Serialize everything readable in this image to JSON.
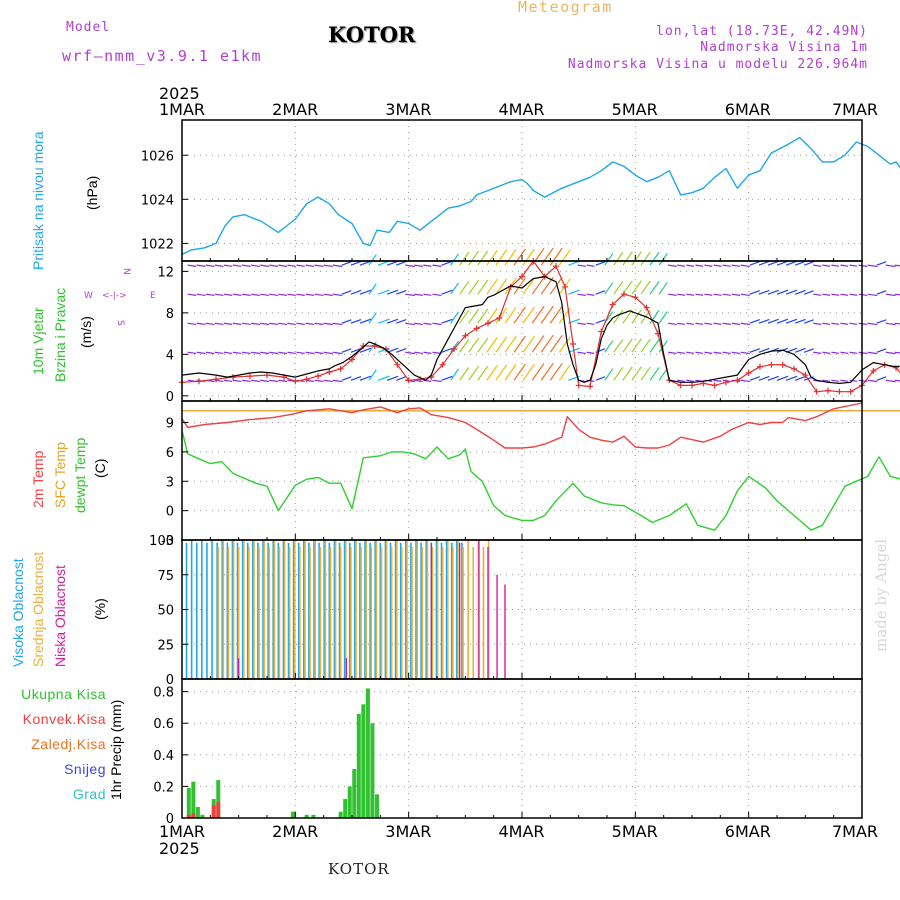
{
  "header": {
    "model_label": "Model",
    "model_name": "wrf—nmm_v3.9.1  e1km",
    "station": "KOTOR",
    "title": "Meteogram",
    "lonlat": "lon,lat (18.73E, 42.49N)",
    "elevation": "Nadmorska Visina 1m",
    "model_elevation": "Nadmorska Visina u modelu 226.964m"
  },
  "footer": {
    "station": "KOTOR",
    "credit": "made by Angel"
  },
  "axis": {
    "year": "2025",
    "dates": [
      "1MAR",
      "2MAR",
      "3MAR",
      "4MAR",
      "5MAR",
      "6MAR",
      "7MAR"
    ]
  },
  "colors": {
    "pressure": "#1ea8e8",
    "temp2m": "#f04040",
    "sfc": "#e8a020",
    "dewpt": "#30d030",
    "wind_speed": "#000000",
    "gust": "#e03030",
    "high_cloud": "#1ea8e8",
    "mid_cloud": "#e8b040",
    "low_cloud": "#d020a0",
    "precip": "#30c030",
    "convective": "#f04040"
  },
  "panels": {
    "pressure": {
      "label": "Pritisak na nivou mora",
      "unit": "(hPa)",
      "ticks": [
        "1022",
        "1024",
        "1026"
      ]
    },
    "wind": {
      "label1": "10m Vjetar",
      "label2": "Brzina i Pravac",
      "unit": "(m/s)",
      "ticks": [
        "0",
        "4",
        "8",
        "12"
      ],
      "compass": {
        "n": "N",
        "s": "S",
        "w": "W",
        "e": "E"
      }
    },
    "temp": {
      "label1": "2m Temp",
      "label2": "SFC Temp",
      "label3": "dewpt Temp",
      "unit": "(C)",
      "ticks": [
        "-3",
        "0",
        "3",
        "6",
        "9"
      ]
    },
    "cloud": {
      "label1": "Visoka Oblacnost",
      "label2": "Srednja Oblacnost",
      "label3": "Niska Oblacnost",
      "unit": "(%)",
      "ticks": [
        "0",
        "25",
        "50",
        "75",
        "100"
      ]
    },
    "precip": {
      "unit": "1hr Precip (mm)",
      "ticks": [
        "0",
        "0.2",
        "0.4",
        "0.6",
        "0.8"
      ],
      "legend": [
        "Ukupna Kisa",
        "Konvek.Kisa",
        "Zaledj.Kisa",
        "Snijeg",
        "Grad"
      ]
    }
  },
  "chart_data": [
    {
      "type": "line",
      "title": "Pritisak na nivou mora",
      "ylabel": "(hPa)",
      "x_unit": "days since 1MAR 00z",
      "ylim": [
        1021.2,
        1027.6
      ],
      "series": [
        {
          "name": "Pritisak na nivou mora",
          "x": [
            0,
            0.08,
            0.2,
            0.3,
            0.38,
            0.45,
            0.55,
            0.6,
            0.7,
            0.85,
            0.95,
            1.0,
            1.1,
            1.2,
            1.3,
            1.38,
            1.5,
            1.6,
            1.66,
            1.72,
            1.83,
            1.9,
            2.0,
            2.1,
            2.2,
            2.25,
            2.35,
            2.45,
            2.55,
            2.6,
            2.7,
            2.8,
            2.9,
            3.0,
            3.05,
            3.1,
            3.2,
            3.35,
            3.5,
            3.6,
            3.7,
            3.8,
            3.9,
            4.0,
            4.1,
            4.2,
            4.3,
            4.4,
            4.5,
            4.6,
            4.7,
            4.8,
            4.9,
            5.0,
            5.1,
            5.2,
            5.35,
            5.45,
            5.55,
            5.65,
            5.75,
            5.85,
            5.95,
            6.05,
            6.15,
            6.25,
            6.3,
            6.4,
            6.5,
            6.6,
            6.7,
            6.8,
            6.85,
            6.9,
            7.0
          ],
          "y": [
            1021.5,
            1021.7,
            1021.8,
            1022.0,
            1022.8,
            1023.2,
            1023.3,
            1023.2,
            1023.0,
            1022.5,
            1022.9,
            1023.1,
            1023.8,
            1024.1,
            1023.8,
            1023.3,
            1022.9,
            1022.0,
            1021.9,
            1022.6,
            1022.5,
            1023.0,
            1022.9,
            1022.6,
            1023.0,
            1023.2,
            1023.6,
            1023.7,
            1023.9,
            1024.2,
            1024.4,
            1024.6,
            1024.8,
            1024.9,
            1024.7,
            1024.4,
            1024.1,
            1024.5,
            1024.8,
            1025.0,
            1025.3,
            1025.7,
            1025.5,
            1025.1,
            1024.8,
            1025.0,
            1025.3,
            1024.2,
            1024.3,
            1024.5,
            1025.0,
            1025.4,
            1024.5,
            1025.1,
            1025.3,
            1026.1,
            1026.5,
            1026.8,
            1026.3,
            1025.7,
            1025.7,
            1026.0,
            1026.6,
            1026.4,
            1026.0,
            1025.6,
            1025.7,
            1025.0,
            1024.0,
            1023.6,
            1023.5,
            1023.4,
            1023.5,
            1023.4,
            1023.2
          ]
        }
      ]
    },
    {
      "type": "line",
      "title": "10m Vjetar Brzina i Pravac",
      "ylabel": "(m/s)",
      "x_unit": "days since 1MAR 00z",
      "ylim": [
        -0.5,
        13
      ],
      "series": [
        {
          "name": "speed",
          "x": [
            0,
            0.15,
            0.3,
            0.4,
            0.5,
            0.6,
            0.7,
            0.8,
            0.9,
            1.0,
            1.1,
            1.2,
            1.3,
            1.35,
            1.42,
            1.5,
            1.58,
            1.65,
            1.7,
            1.78,
            1.85,
            1.95,
            2.05,
            2.15,
            2.2,
            2.25,
            2.35,
            2.45,
            2.5,
            2.55,
            2.6,
            2.65,
            2.7,
            2.75,
            2.8,
            2.9,
            3.0,
            3.1,
            3.2,
            3.3,
            3.35,
            3.4,
            3.45,
            3.5,
            3.55,
            3.6,
            3.65,
            3.7,
            3.75,
            3.8,
            3.85,
            3.9,
            3.95,
            4.0,
            4.1,
            4.2,
            4.25,
            4.3,
            4.4,
            4.5,
            4.6,
            4.7,
            4.8,
            4.9,
            5.0,
            5.1,
            5.2,
            5.3,
            5.4,
            5.5,
            5.55,
            5.6,
            5.65,
            5.7,
            5.8,
            5.9,
            6.0,
            6.1,
            6.2,
            6.3,
            6.4,
            6.45,
            6.5,
            6.6,
            6.7,
            6.8,
            6.85,
            6.9,
            7.0
          ],
          "y": [
            2.0,
            2.2,
            2.0,
            1.8,
            2.0,
            2.2,
            2.3,
            2.2,
            2.0,
            1.8,
            2.1,
            2.4,
            2.6,
            2.9,
            3.2,
            3.8,
            4.5,
            5.2,
            5.0,
            4.6,
            4.0,
            3.0,
            2.0,
            1.5,
            2.0,
            3.5,
            5.5,
            7.5,
            8.5,
            8.6,
            8.7,
            8.8,
            9.5,
            9.7,
            10.0,
            10.6,
            10.4,
            11.3,
            11.5,
            11.0,
            9.0,
            5.0,
            3.0,
            1.5,
            1.3,
            1.5,
            3.0,
            5.5,
            6.8,
            7.5,
            7.8,
            8.0,
            8.2,
            8.0,
            7.6,
            7.0,
            4.0,
            1.5,
            1.3,
            1.3,
            1.4,
            1.6,
            1.8,
            2.0,
            3.5,
            4.0,
            4.3,
            4.4,
            4.0,
            3.0,
            1.8,
            1.5,
            1.4,
            1.3,
            1.2,
            1.3,
            2.5,
            3.2,
            3.0,
            2.8,
            3.0,
            3.5,
            2.2,
            1.2,
            1.0,
            1.2,
            1.3,
            1.5,
            1.8
          ]
        },
        {
          "name": "gust",
          "x": [
            0,
            0.15,
            0.3,
            0.45,
            0.6,
            0.75,
            0.9,
            1.0,
            1.1,
            1.2,
            1.3,
            1.4,
            1.5,
            1.6,
            1.7,
            1.8,
            1.9,
            2.0,
            2.1,
            2.2,
            2.3,
            2.4,
            2.5,
            2.6,
            2.7,
            2.8,
            2.9,
            3.0,
            3.1,
            3.2,
            3.3,
            3.38,
            3.45,
            3.5,
            3.6,
            3.7,
            3.8,
            3.9,
            4.0,
            4.1,
            4.2,
            4.3,
            4.4,
            4.5,
            4.6,
            4.7,
            4.8,
            4.9,
            5.0,
            5.1,
            5.2,
            5.3,
            5.4,
            5.5,
            5.6,
            5.7,
            5.8,
            5.9,
            6.0,
            6.1,
            6.2,
            6.3,
            6.4,
            6.5,
            6.6,
            6.7,
            6.8,
            6.9,
            7.0
          ],
          "y": [
            1.3,
            1.4,
            1.6,
            1.8,
            1.9,
            2.0,
            1.8,
            1.4,
            1.6,
            1.9,
            2.3,
            2.6,
            3.5,
            4.8,
            4.8,
            4.5,
            3.0,
            1.5,
            1.6,
            1.8,
            3.0,
            4.5,
            5.8,
            6.5,
            7.0,
            7.5,
            10.5,
            11.5,
            13.0,
            11.5,
            12.5,
            10.5,
            5.0,
            1.0,
            0.9,
            6.2,
            8.8,
            9.8,
            9.5,
            8.5,
            6.0,
            1.5,
            1.0,
            1.0,
            1.2,
            1.0,
            1.3,
            1.5,
            2.2,
            2.8,
            3.0,
            3.0,
            2.6,
            2.0,
            0.4,
            0.5,
            0.4,
            0.4,
            1.0,
            2.4,
            3.0,
            2.7,
            1.5,
            0.8,
            0.7,
            0.6,
            0.7,
            1.4,
            1.3
          ]
        }
      ]
    },
    {
      "type": "line",
      "title": "2m Temp / SFC Temp / dewpt Temp",
      "ylabel": "(C)",
      "x_unit": "days since 1MAR 00z",
      "ylim": [
        -3,
        11.2
      ],
      "series": [
        {
          "name": "2m Temp",
          "x": [
            0,
            0.05,
            0.2,
            0.4,
            0.6,
            0.8,
            0.95,
            1.1,
            1.3,
            1.5,
            1.6,
            1.75,
            1.9,
            2.0,
            2.1,
            2.2,
            2.35,
            2.5,
            2.6,
            2.75,
            2.85,
            3.0,
            3.1,
            3.2,
            3.35,
            3.4,
            3.5,
            3.6,
            3.7,
            3.8,
            3.9,
            4.0,
            4.1,
            4.2,
            4.3,
            4.4,
            4.6,
            4.75,
            4.85,
            5.0,
            5.1,
            5.2,
            5.3,
            5.35,
            5.5,
            5.6,
            5.75,
            6.0
          ],
          "y": [
            9.4,
            8.5,
            8.8,
            9.0,
            9.3,
            9.5,
            9.8,
            10.2,
            10.4,
            10.0,
            10.3,
            10.6,
            10.0,
            10.4,
            10.5,
            9.8,
            9.5,
            9.0,
            8.3,
            7.2,
            6.4,
            6.4,
            6.5,
            6.8,
            7.5,
            9.6,
            8.3,
            7.5,
            7.2,
            7.0,
            7.6,
            6.5,
            6.4,
            6.4,
            6.7,
            7.5,
            7.0,
            7.6,
            8.3,
            9.0,
            8.8,
            9.0,
            9.0,
            9.5,
            9.2,
            9.6,
            10.4,
            11.0
          ]
        },
        {
          "name": "SFC Temp",
          "x": [
            0,
            7.0
          ],
          "y": [
            10.2,
            10.2
          ]
        },
        {
          "name": "dewpt Temp",
          "x": [
            0,
            0.05,
            0.15,
            0.25,
            0.35,
            0.45,
            0.55,
            0.65,
            0.75,
            0.85,
            1.0,
            1.1,
            1.2,
            1.3,
            1.4,
            1.5,
            1.6,
            1.75,
            1.85,
            1.95,
            2.05,
            2.15,
            2.25,
            2.35,
            2.45,
            2.5,
            2.55,
            2.65,
            2.75,
            2.85,
            3.0,
            3.1,
            3.2,
            3.3,
            3.45,
            3.55,
            3.7,
            3.8,
            3.9,
            4.05,
            4.15,
            4.3,
            4.45,
            4.55,
            4.7,
            4.8,
            4.9,
            5.0,
            5.15,
            5.25,
            5.35,
            5.45,
            5.55,
            5.65,
            5.75,
            5.85,
            5.95,
            6.05,
            6.15,
            6.25,
            6.35,
            6.45,
            6.55,
            6.65,
            6.75,
            6.85,
            6.9,
            6.95,
            7.0
          ],
          "y": [
            8.2,
            5.8,
            5.3,
            4.8,
            5.0,
            3.8,
            3.3,
            2.8,
            2.5,
            0.0,
            2.6,
            3.2,
            3.4,
            2.8,
            2.8,
            0.2,
            5.4,
            5.6,
            6.0,
            6.0,
            5.8,
            5.3,
            6.5,
            5.3,
            5.7,
            6.3,
            4.0,
            3.0,
            0.5,
            -0.5,
            -1.0,
            -1.0,
            -0.5,
            1.0,
            2.8,
            1.5,
            0.8,
            0.6,
            0.5,
            -0.5,
            -1.2,
            -0.5,
            0.7,
            -1.5,
            -2.0,
            -0.5,
            2.0,
            3.5,
            2.3,
            1.0,
            0.0,
            -1.0,
            -2.0,
            -1.5,
            0.5,
            2.5,
            3.0,
            3.5,
            5.5,
            3.5,
            3.2,
            3.0,
            2.5,
            0.8,
            4.5,
            3.5,
            -0.7,
            -0.3,
            -0.3
          ]
        }
      ]
    },
    {
      "type": "bar",
      "title": "Visoka / Srednja / Niska Oblacnost",
      "ylabel": "(%)",
      "x_unit": "days since 1MAR 00z",
      "ylim": [
        0,
        100
      ],
      "series": [
        {
          "name": "Visoka Oblacnost",
          "x_range": [
            0.04,
            2.5
          ],
          "values": [
            98,
            100
          ]
        },
        {
          "name": "Srednja Oblacnost",
          "x_range": [
            0.3,
            2.72
          ],
          "values": [
            95,
            100
          ]
        },
        {
          "name": "Niska Oblacnost",
          "x": [
            0.5,
            1.45,
            2.2,
            2.45,
            2.62,
            2.7,
            2.78,
            2.85
          ],
          "values": [
            15,
            15,
            98,
            98,
            100,
            95,
            75,
            68
          ]
        }
      ]
    },
    {
      "type": "bar",
      "title": "1hr Precip",
      "ylabel": "(mm)",
      "x_unit": "days since 1MAR 00z",
      "ylim": [
        0,
        0.88
      ],
      "series": [
        {
          "name": "Ukupna Kisa",
          "x": [
            0.06,
            0.1,
            0.14,
            0.18,
            0.28,
            0.32,
            0.98,
            1.1,
            1.16,
            1.4,
            1.44,
            1.48,
            1.52,
            1.56,
            1.6,
            1.64,
            1.68,
            1.72
          ],
          "values": [
            0.19,
            0.23,
            0.07,
            0.02,
            0.12,
            0.24,
            0.04,
            0.02,
            0.02,
            0.04,
            0.12,
            0.2,
            0.31,
            0.66,
            0.72,
            0.82,
            0.6,
            0.15
          ]
        },
        {
          "name": "Konvek.Kisa",
          "x": [
            0.06,
            0.1,
            0.28,
            0.32
          ],
          "values": [
            0.02,
            0.03,
            0.08,
            0.1
          ]
        }
      ]
    }
  ]
}
